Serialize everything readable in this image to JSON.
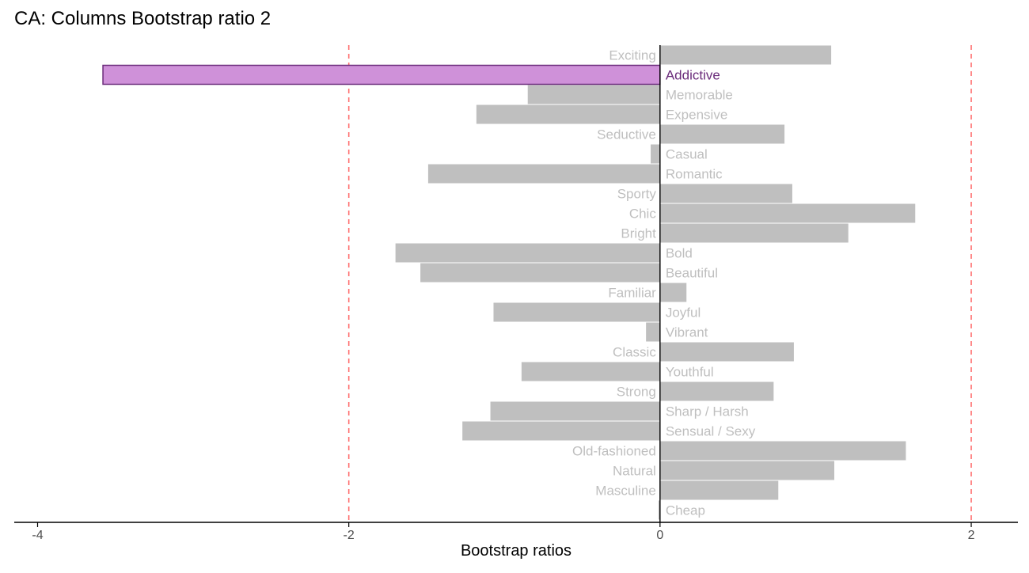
{
  "chart_data": {
    "type": "bar",
    "orientation": "horizontal",
    "title": "CA: Columns Bootstrap ratio 2",
    "xlabel": "Bootstrap ratios",
    "ylabel": "",
    "xlim": [
      -4.15,
      2.3
    ],
    "x_ticks": [
      -4,
      -2,
      0,
      2
    ],
    "x_tick_labels": [
      "-4",
      "-2",
      "0",
      "2"
    ],
    "threshold_lines": [
      -2,
      2
    ],
    "threshold_color": "#ff6e6e",
    "default_bar_color": "#bfbfbf",
    "default_label_color": "#bfbfbf",
    "highlight_fill": "#cf91d9",
    "highlight_stroke": "#6a2b7a",
    "highlight_label_color": "#6a2b7a",
    "grid": false,
    "legend": "none",
    "categories": [
      "Exciting",
      "Addictive",
      "Memorable",
      "Expensive",
      "Seductive",
      "Casual",
      "Romantic",
      "Sporty",
      "Chic",
      "Bright",
      "Bold",
      "Beautiful",
      "Familiar",
      "Joyful",
      "Vibrant",
      "Classic",
      "Youthful",
      "Strong",
      "Sharp / Harsh",
      "Sensual / Sexy",
      "Old-fashioned",
      "Natural",
      "Masculine",
      "Cheap"
    ],
    "values": [
      1.1,
      -3.58,
      -0.85,
      -1.18,
      0.8,
      -0.06,
      -1.49,
      0.85,
      1.64,
      1.21,
      -1.7,
      -1.54,
      0.17,
      -1.07,
      -0.09,
      0.86,
      -0.89,
      0.73,
      -1.09,
      -1.27,
      1.58,
      1.12,
      0.76,
      -0.01
    ],
    "highlighted": [
      "Addictive"
    ]
  }
}
